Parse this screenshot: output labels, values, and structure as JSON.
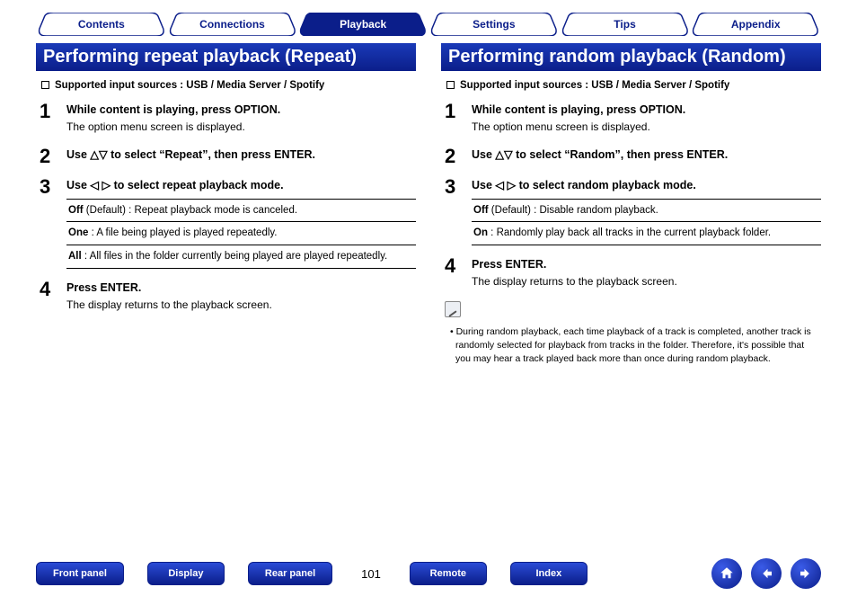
{
  "colors": {
    "brand_blue": "#0b1e8a",
    "brand_blue_light": "#1a3ab8",
    "white": "#ffffff",
    "black": "#000000"
  },
  "tabs": [
    {
      "label": "Contents",
      "active": false
    },
    {
      "label": "Connections",
      "active": false
    },
    {
      "label": "Playback",
      "active": true
    },
    {
      "label": "Settings",
      "active": false
    },
    {
      "label": "Tips",
      "active": false
    },
    {
      "label": "Appendix",
      "active": false
    }
  ],
  "left": {
    "title": "Performing repeat playback (Repeat)",
    "supported": "Supported input sources : USB / Media Server / Spotify",
    "steps": [
      {
        "num": "1",
        "bold": "While content is playing, press OPTION.",
        "sub": "The option menu screen is displayed."
      },
      {
        "num": "2",
        "bold": "Use △▽ to select “Repeat”, then press ENTER."
      },
      {
        "num": "3",
        "bold": "Use ◁ ▷ to select repeat playback mode.",
        "options": [
          {
            "key": "Off",
            "text": " (Default) : Repeat playback mode is canceled."
          },
          {
            "key": "One",
            "text": " : A file being played is played repeatedly."
          },
          {
            "key": "All",
            "text": " : All files in the folder currently being played are played repeatedly."
          }
        ]
      },
      {
        "num": "4",
        "bold": "Press ENTER.",
        "sub": "The display returns to the playback screen."
      }
    ]
  },
  "right": {
    "title": "Performing random playback (Random)",
    "supported": "Supported input sources : USB / Media Server / Spotify",
    "steps": [
      {
        "num": "1",
        "bold": "While content is playing, press OPTION.",
        "sub": "The option menu screen is displayed."
      },
      {
        "num": "2",
        "bold": "Use △▽ to select “Random”, then press ENTER."
      },
      {
        "num": "3",
        "bold": "Use ◁ ▷ to select random playback mode.",
        "options": [
          {
            "key": "Off",
            "text": " (Default) : Disable random playback."
          },
          {
            "key": "On",
            "text": " : Randomly play back all tracks in the current playback folder."
          }
        ]
      },
      {
        "num": "4",
        "bold": "Press ENTER.",
        "sub": "The display returns to the playback screen."
      }
    ],
    "note": "During random playback, each time playback of a track is completed, another track is randomly selected for playback from tracks in the folder. Therefore, it's possible that you may hear a track played back more than once during random playback."
  },
  "footer": {
    "buttons_left": [
      "Front panel",
      "Display",
      "Rear panel"
    ],
    "page": "101",
    "buttons_right": [
      "Remote",
      "Index"
    ]
  }
}
